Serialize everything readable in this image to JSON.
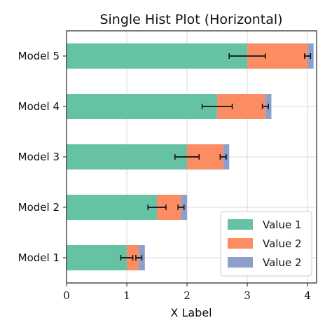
{
  "chart_data": {
    "type": "bar",
    "orientation": "horizontal",
    "stacked": true,
    "title": "Single Hist Plot (Horizontal)",
    "xlabel": "X Label",
    "ylabel": "",
    "xlim": [
      0,
      4.15
    ],
    "xticks": [
      0,
      1,
      2,
      3,
      4
    ],
    "grid": true,
    "legend_position": "bottom-right",
    "categories": [
      "Model 1",
      "Model 2",
      "Model 3",
      "Model 4",
      "Model 5"
    ],
    "series": [
      {
        "name": "Value 1",
        "color": "#66c2a5",
        "values": [
          1.0,
          1.5,
          2.0,
          2.5,
          3.0
        ],
        "errors": [
          0.1,
          0.15,
          0.2,
          0.25,
          0.3
        ]
      },
      {
        "name": "Value 2",
        "color": "#fc8d62",
        "values": [
          0.2,
          0.4,
          0.6,
          0.8,
          1.0
        ],
        "errors": [
          0.05,
          0.05,
          0.05,
          0.05,
          0.05
        ]
      },
      {
        "name": "Value 2",
        "color": "#8da0cb",
        "values": [
          0.1,
          0.1,
          0.1,
          0.1,
          0.1
        ],
        "errors": []
      }
    ]
  }
}
